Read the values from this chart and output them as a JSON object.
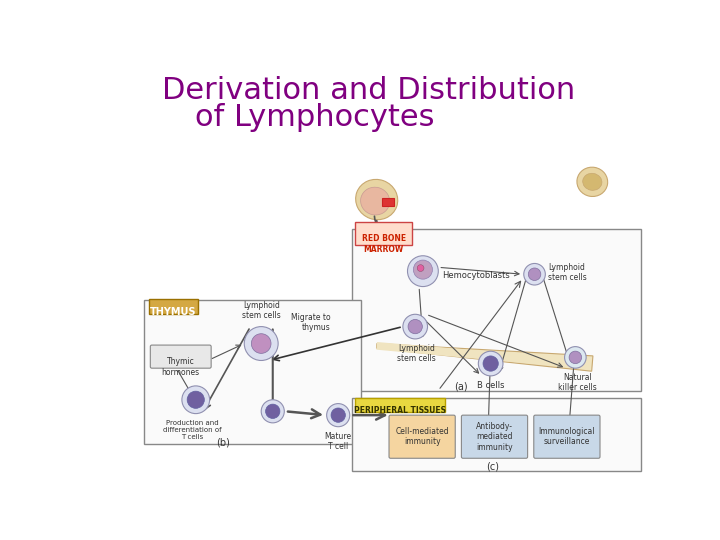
{
  "title_line1": "Derivation and Distribution",
  "title_line2": "of Lymphocytes",
  "title_color": "#800080",
  "title_fontsize": 22,
  "bg_color": "#ffffff",
  "labels": {
    "red_bone_marrow": "RED BONE\nMARROW",
    "hemocytoblasts": "Hemocytoblasts",
    "lymphoid_stem_cells_a": "Lymphoid\nstem cells",
    "lymphoid_stem_cells_b": "Lymphoid\nstem cells",
    "b_cells": "B cells",
    "natural_killer": "Natural\nkiller cells",
    "thymus": "THYMUS",
    "thymic_hormones": "Thymic\nhormones",
    "lymphoid_stem_cells_c": "Lymphoid\nstem cells",
    "migrate_to_thymus": "Migrate to\nthymus",
    "production_diff": "Production and\ndifferentiation of\nT cells",
    "mature_t_cell": "Mature\nT cell",
    "peripheral_tissues": "PERIPHERAL TISSUES",
    "cell_mediated": "Cell-mediated\nimmunity",
    "antibody_mediated": "Antibody-\nmediated\nimmunity",
    "immunological": "Immunological\nsurveillance",
    "label_a": "(a)",
    "label_b": "(b)",
    "label_c": "(c)"
  }
}
